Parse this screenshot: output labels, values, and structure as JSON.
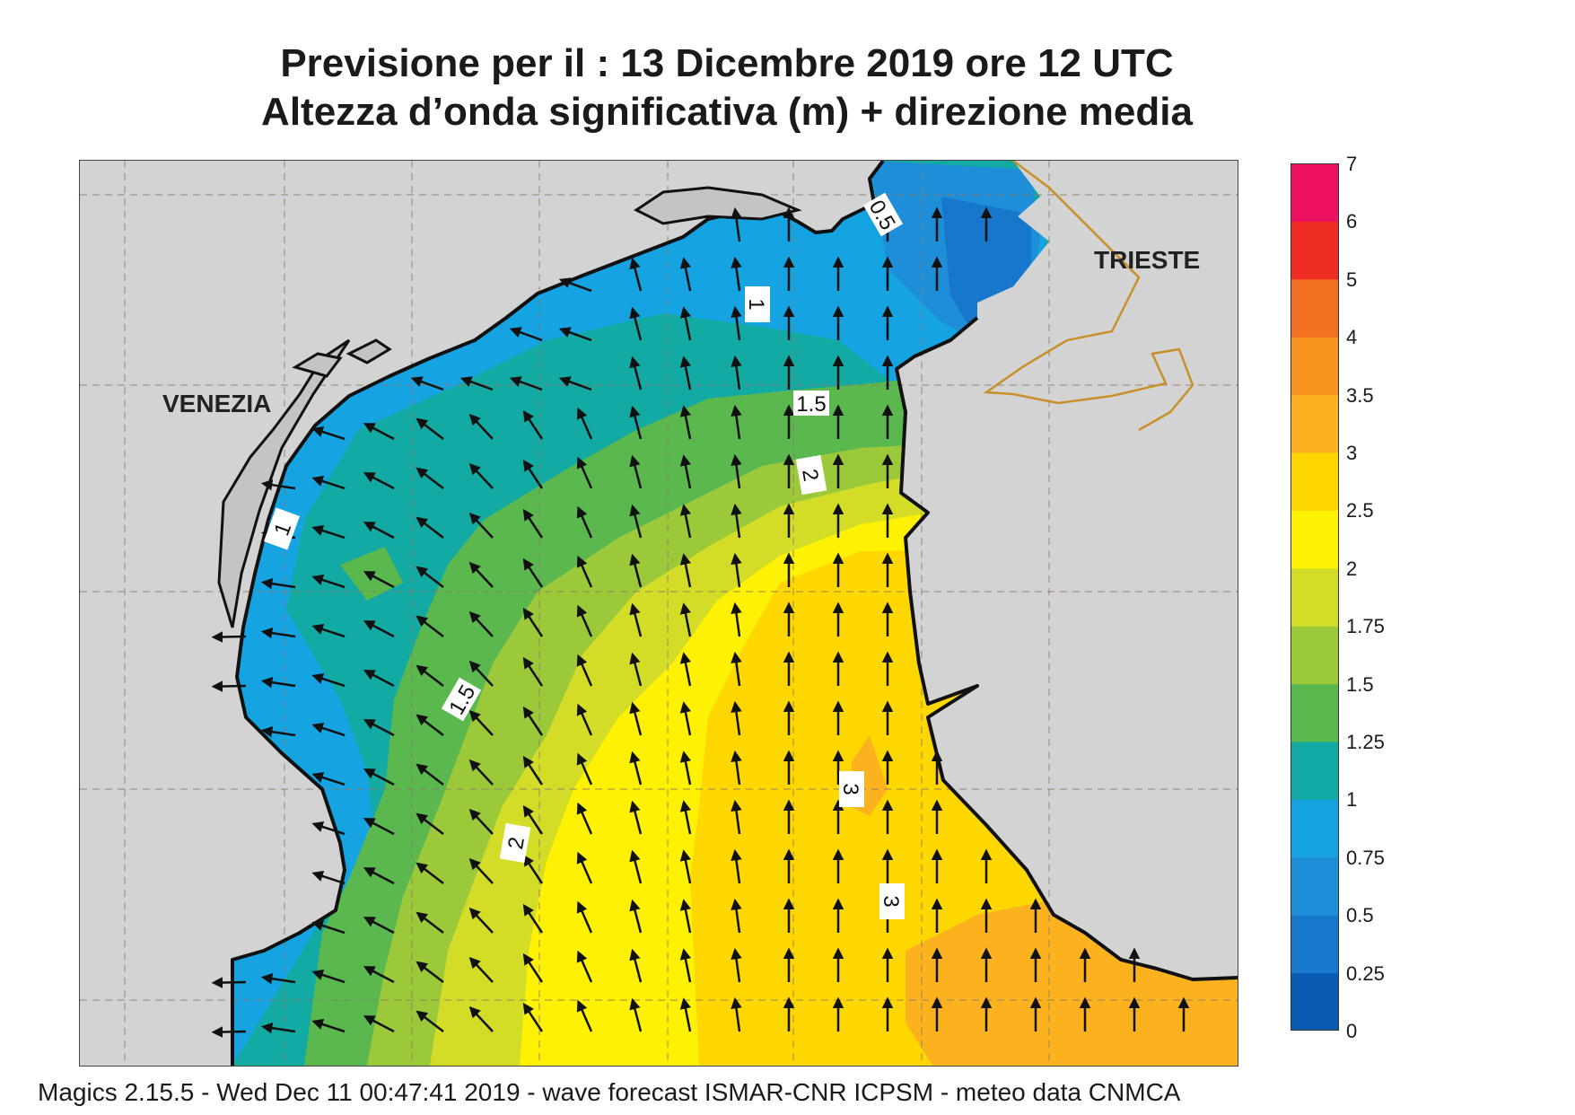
{
  "title": {
    "line1": "Previsione per il  :  13 Dicembre  2019   ore 12 UTC",
    "line2": "Altezza d’onda significativa (m) + direzione media"
  },
  "map": {
    "place_labels": [
      "VENEZIA",
      "TRIESTE"
    ],
    "contour_labels": [
      "0.5",
      "1",
      "1",
      "1.5",
      "1.5",
      "2",
      "2",
      "3",
      "3"
    ],
    "land_color": "#d3d3d3",
    "coastline_color": "#111111",
    "border_color": "#c8902a",
    "arrow_color": "#111111"
  },
  "colorbar": {
    "levels": [
      "0",
      "0.25",
      "0.5",
      "0.75",
      "1",
      "1.25",
      "1.5",
      "1.75",
      "2",
      "2.5",
      "3",
      "3.5",
      "4",
      "5",
      "6",
      "7"
    ],
    "colors": [
      "#0a5cb3",
      "#1677cc",
      "#1e8ed8",
      "#15a3e2",
      "#12aaa3",
      "#5bb84f",
      "#9cc93a",
      "#d3dd28",
      "#fff104",
      "#ffd700",
      "#fcb21f",
      "#f89320",
      "#f36f21",
      "#ef2d24",
      "#ec1160"
    ]
  },
  "footer": "Magics 2.15.5 - Wed Dec 11 00:47:41 2019 - wave forecast  ISMAR-CNR  ICPSM - meteo data   CNMCA"
}
